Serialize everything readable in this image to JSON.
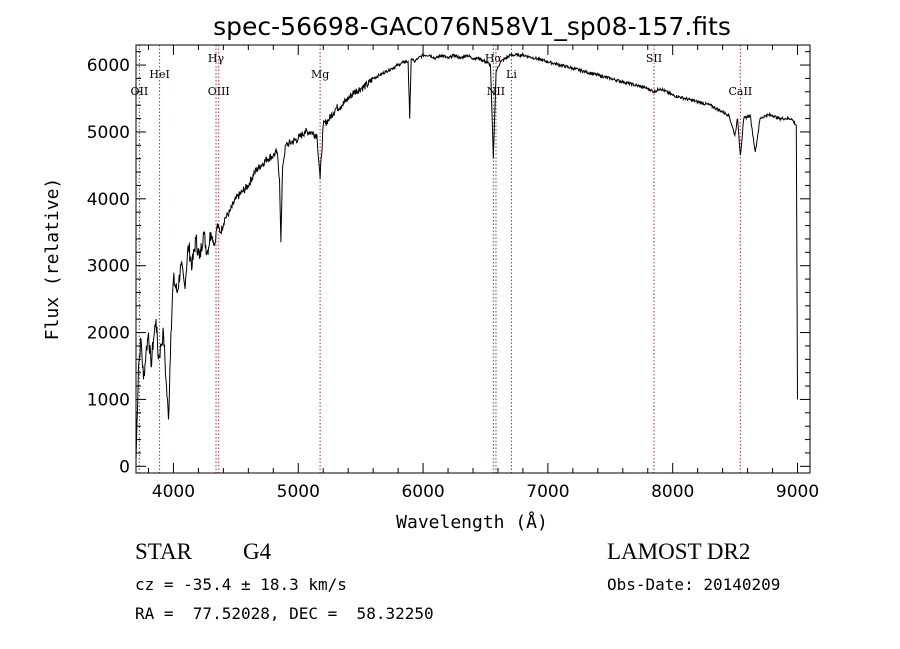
{
  "chart_data": {
    "type": "line",
    "title": "spec-56698-GAC076N58V1_sp08-157.fits",
    "xlabel": "Wavelength (Å)",
    "ylabel": "Flux (relative)",
    "xlim": [
      3700,
      9100
    ],
    "ylim": [
      -100,
      6300
    ],
    "x_ticks": [
      4000,
      5000,
      6000,
      7000,
      8000,
      9000
    ],
    "y_ticks": [
      0,
      1000,
      2000,
      3000,
      4000,
      5000,
      6000
    ],
    "grid": false,
    "series_color": "#000000",
    "line_marker_color": "#b03030",
    "spectral_lines": [
      {
        "label": "OII",
        "wavelength": 3727,
        "row": "low"
      },
      {
        "label": "HeI",
        "wavelength": 3889,
        "row": "mid"
      },
      {
        "label": "Hγ",
        "wavelength": 4341,
        "row": "high"
      },
      {
        "label": "OIII",
        "wavelength": 4363,
        "row": "low"
      },
      {
        "label": "Mg",
        "wavelength": 5175,
        "row": "mid"
      },
      {
        "label": "Hα",
        "wavelength": 6563,
        "row": "high"
      },
      {
        "label": "NII",
        "wavelength": 6584,
        "row": "low"
      },
      {
        "label": "Li",
        "wavelength": 6708,
        "row": "mid"
      },
      {
        "label": "SII",
        "wavelength": 7850,
        "row": "high"
      },
      {
        "label": "CaII",
        "wavelength": 8542,
        "row": "low"
      }
    ],
    "spectrum": {
      "x": [
        3700,
        3720,
        3740,
        3760,
        3780,
        3800,
        3820,
        3840,
        3860,
        3880,
        3900,
        3920,
        3940,
        3960,
        3980,
        4000,
        4030,
        4060,
        4090,
        4120,
        4150,
        4180,
        4210,
        4240,
        4270,
        4300,
        4330,
        4350,
        4380,
        4410,
        4450,
        4500,
        4550,
        4600,
        4650,
        4700,
        4750,
        4800,
        4830,
        4850,
        4861,
        4875,
        4900,
        4950,
        5000,
        5050,
        5100,
        5150,
        5175,
        5200,
        5250,
        5300,
        5350,
        5400,
        5450,
        5500,
        5550,
        5600,
        5650,
        5700,
        5750,
        5800,
        5850,
        5880,
        5893,
        5905,
        5930,
        5960,
        6000,
        6050,
        6100,
        6150,
        6200,
        6250,
        6300,
        6350,
        6400,
        6450,
        6500,
        6540,
        6563,
        6585,
        6620,
        6700,
        6800,
        6900,
        7000,
        7100,
        7200,
        7300,
        7400,
        7500,
        7600,
        7700,
        7800,
        7850,
        7900,
        8000,
        8100,
        8200,
        8300,
        8400,
        8450,
        8498,
        8520,
        8542,
        8570,
        8620,
        8662,
        8700,
        8750,
        8800,
        8850,
        8900,
        8950,
        8990,
        9000
      ],
      "y": [
        100,
        1500,
        1900,
        1300,
        1700,
        2000,
        1500,
        1900,
        2200,
        1600,
        1800,
        2000,
        1300,
        700,
        2000,
        2800,
        2600,
        3000,
        2700,
        3300,
        3000,
        3400,
        3100,
        3500,
        3200,
        3500,
        3300,
        3600,
        3500,
        3700,
        3800,
        4000,
        4100,
        4200,
        4400,
        4500,
        4600,
        4650,
        4700,
        4300,
        3350,
        4500,
        4800,
        4850,
        4900,
        5000,
        5000,
        4950,
        4300,
        5100,
        5200,
        5350,
        5400,
        5500,
        5600,
        5650,
        5700,
        5800,
        5850,
        5900,
        5950,
        6000,
        6050,
        6050,
        5200,
        6100,
        6050,
        6100,
        6150,
        6150,
        6100,
        6150,
        6100,
        6150,
        6100,
        6150,
        6100,
        6100,
        6050,
        6000,
        4600,
        5900,
        6050,
        6150,
        6150,
        6100,
        6050,
        6000,
        5950,
        5900,
        5850,
        5800,
        5750,
        5700,
        5650,
        5600,
        5650,
        5550,
        5500,
        5450,
        5400,
        5300,
        5250,
        4950,
        5200,
        4650,
        5200,
        5250,
        4700,
        5200,
        5250,
        5250,
        5200,
        5200,
        5200,
        5100,
        1000
      ]
    }
  },
  "info": {
    "object_class": "STAR",
    "subclass": "G4",
    "survey": "LAMOST DR2",
    "redshift": "cz = -35.4 ± 18.3 km/s",
    "obs_date": "Obs-Date: 20140209",
    "coords": "RA =  77.52028, DEC =  58.32250"
  }
}
